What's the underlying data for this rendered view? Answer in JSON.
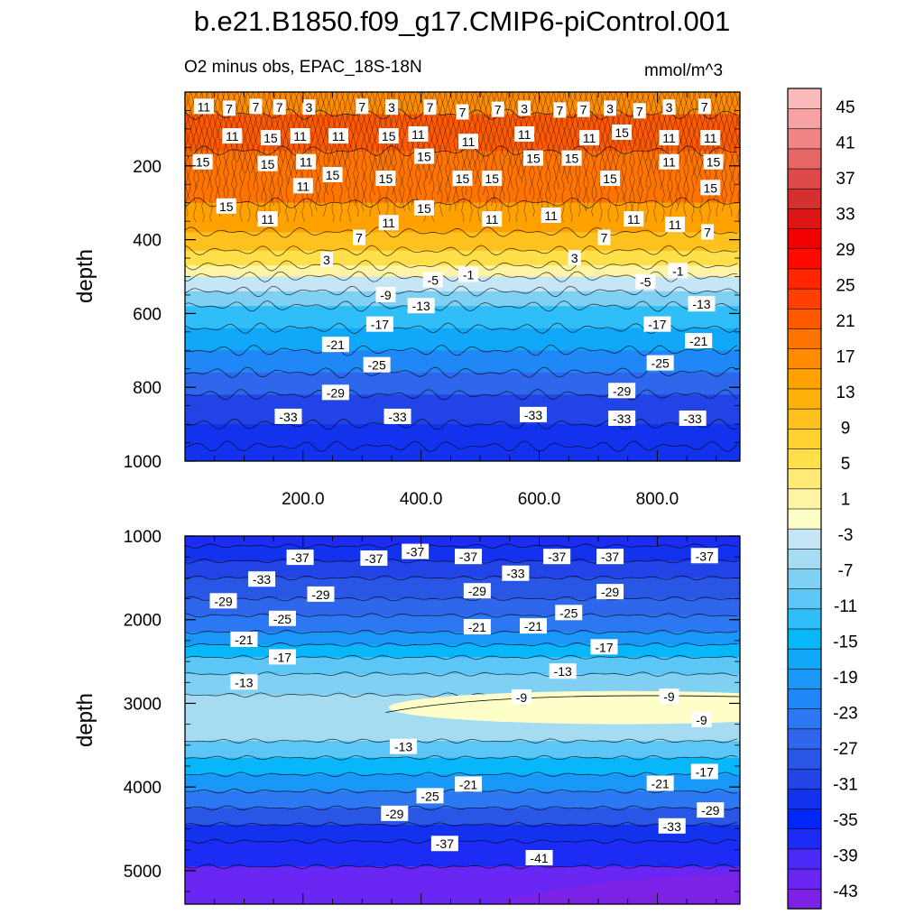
{
  "chart_data": {
    "type": "heatmap",
    "title": "b.e21.B1850.f09_g17.CMIP6-piControl.001",
    "subtitle": "O2 minus obs, EPAC_18S-18N",
    "units": "mmol/m^3",
    "colorbar": {
      "levels": [
        -45,
        -43,
        -41,
        -39,
        -37,
        -35,
        -33,
        -31,
        -29,
        -27,
        -25,
        -23,
        -21,
        -19,
        -17,
        -15,
        -13,
        -11,
        -9,
        -7,
        -5,
        -3,
        -1,
        1,
        3,
        5,
        7,
        9,
        11,
        13,
        15,
        17,
        19,
        21,
        23,
        25,
        27,
        29,
        31,
        33,
        35,
        37,
        39,
        41,
        43,
        45,
        47
      ],
      "labels": [
        "45",
        "41",
        "37",
        "33",
        "29",
        "25",
        "21",
        "17",
        "13",
        "9",
        "5",
        "1",
        "-3",
        "-7",
        "-11",
        "-15",
        "-19",
        "-23",
        "-27",
        "-31",
        "-35",
        "-39",
        "-43"
      ],
      "colors": [
        "#7c22e6",
        "#6a26f2",
        "#4c2af6",
        "#1c2cf4",
        "#0026f8",
        "#1232ee",
        "#2244e6",
        "#2a56e6",
        "#2e66ec",
        "#2c78f2",
        "#1f88f6",
        "#1a98fa",
        "#12a8fa",
        "#08b6fa",
        "#30bef8",
        "#5cc6f6",
        "#80d0f4",
        "#a6dcf2",
        "#c6e6f6",
        "#fefec8",
        "#fff4a4",
        "#ffea78",
        "#ffe04a",
        "#ffd232",
        "#ffc11e",
        "#ffb20c",
        "#ffa200",
        "#ff8c00",
        "#ff7400",
        "#ff5a00",
        "#ff4000",
        "#ff2600",
        "#ff0a00",
        "#f20000",
        "#e01616",
        "#d43030",
        "#de4a4a",
        "#e66666",
        "#ee8484",
        "#f6a2a2",
        "#fbbaba"
      ]
    },
    "upper_panel": {
      "ylabel": "depth",
      "ylim": [
        0,
        1000
      ],
      "xlim": [
        0,
        940
      ],
      "yticks": [
        "200",
        "400",
        "600",
        "800",
        "1000"
      ],
      "ytick_values": [
        200,
        400,
        600,
        800,
        1000
      ],
      "xticks": [
        "200.0",
        "400.0",
        "600.0",
        "800.0"
      ],
      "xtick_values": [
        200,
        400,
        600,
        800
      ],
      "bands": [
        {
          "depth": 60,
          "value": 9
        },
        {
          "depth": 160,
          "value": 13
        },
        {
          "depth": 300,
          "value": 11
        },
        {
          "depth": 380,
          "value": 7
        },
        {
          "depth": 430,
          "value": 3
        },
        {
          "depth": 470,
          "value": -1
        },
        {
          "depth": 500,
          "value": -5
        },
        {
          "depth": 540,
          "value": -9
        },
        {
          "depth": 580,
          "value": -13
        },
        {
          "depth": 640,
          "value": -17
        },
        {
          "depth": 700,
          "value": -21
        },
        {
          "depth": 760,
          "value": -25
        },
        {
          "depth": 820,
          "value": -29
        },
        {
          "depth": 900,
          "value": -33
        },
        {
          "depth": 960,
          "value": -35
        },
        {
          "depth": 1000,
          "value": -35
        }
      ],
      "contour_labels": [
        {
          "x": 32,
          "y": 40,
          "t": "11"
        },
        {
          "x": 75,
          "y": 45,
          "t": "7"
        },
        {
          "x": 120,
          "y": 40,
          "t": "7"
        },
        {
          "x": 160,
          "y": 42,
          "t": "7"
        },
        {
          "x": 210,
          "y": 42,
          "t": "3"
        },
        {
          "x": 300,
          "y": 40,
          "t": "7"
        },
        {
          "x": 350,
          "y": 42,
          "t": "3"
        },
        {
          "x": 415,
          "y": 42,
          "t": "7"
        },
        {
          "x": 470,
          "y": 55,
          "t": "7"
        },
        {
          "x": 530,
          "y": 48,
          "t": "7"
        },
        {
          "x": 575,
          "y": 45,
          "t": "3"
        },
        {
          "x": 635,
          "y": 50,
          "t": "7"
        },
        {
          "x": 675,
          "y": 48,
          "t": "7"
        },
        {
          "x": 720,
          "y": 45,
          "t": "3"
        },
        {
          "x": 770,
          "y": 52,
          "t": "7"
        },
        {
          "x": 820,
          "y": 42,
          "t": "3"
        },
        {
          "x": 880,
          "y": 40,
          "t": "7"
        },
        {
          "x": 80,
          "y": 120,
          "t": "11"
        },
        {
          "x": 145,
          "y": 125,
          "t": "15"
        },
        {
          "x": 195,
          "y": 120,
          "t": "11"
        },
        {
          "x": 260,
          "y": 120,
          "t": "11"
        },
        {
          "x": 345,
          "y": 120,
          "t": "15"
        },
        {
          "x": 395,
          "y": 115,
          "t": "11"
        },
        {
          "x": 480,
          "y": 135,
          "t": "11"
        },
        {
          "x": 575,
          "y": 115,
          "t": "11"
        },
        {
          "x": 685,
          "y": 125,
          "t": "11"
        },
        {
          "x": 740,
          "y": 110,
          "t": "15"
        },
        {
          "x": 820,
          "y": 125,
          "t": "11"
        },
        {
          "x": 890,
          "y": 125,
          "t": "11"
        },
        {
          "x": 30,
          "y": 190,
          "t": "15"
        },
        {
          "x": 140,
          "y": 195,
          "t": "15"
        },
        {
          "x": 205,
          "y": 190,
          "t": "11"
        },
        {
          "x": 405,
          "y": 175,
          "t": "15"
        },
        {
          "x": 590,
          "y": 180,
          "t": "15"
        },
        {
          "x": 655,
          "y": 180,
          "t": "15"
        },
        {
          "x": 820,
          "y": 190,
          "t": "11"
        },
        {
          "x": 895,
          "y": 190,
          "t": "15"
        },
        {
          "x": 200,
          "y": 255,
          "t": "11"
        },
        {
          "x": 250,
          "y": 225,
          "t": "15"
        },
        {
          "x": 340,
          "y": 235,
          "t": "15"
        },
        {
          "x": 470,
          "y": 235,
          "t": "15"
        },
        {
          "x": 520,
          "y": 235,
          "t": "15"
        },
        {
          "x": 720,
          "y": 235,
          "t": "15"
        },
        {
          "x": 890,
          "y": 260,
          "t": "15"
        },
        {
          "x": 70,
          "y": 310,
          "t": "15"
        },
        {
          "x": 140,
          "y": 345,
          "t": "11"
        },
        {
          "x": 345,
          "y": 355,
          "t": "11"
        },
        {
          "x": 405,
          "y": 315,
          "t": "15"
        },
        {
          "x": 520,
          "y": 345,
          "t": "11"
        },
        {
          "x": 620,
          "y": 335,
          "t": "11"
        },
        {
          "x": 760,
          "y": 345,
          "t": "11"
        },
        {
          "x": 830,
          "y": 360,
          "t": "11"
        },
        {
          "x": 295,
          "y": 395,
          "t": "7"
        },
        {
          "x": 710,
          "y": 395,
          "t": "7"
        },
        {
          "x": 885,
          "y": 380,
          "t": "7"
        },
        {
          "x": 240,
          "y": 455,
          "t": "3"
        },
        {
          "x": 660,
          "y": 450,
          "t": "3"
        },
        {
          "x": 480,
          "y": 495,
          "t": "-1"
        },
        {
          "x": 835,
          "y": 485,
          "t": "-1"
        },
        {
          "x": 420,
          "y": 510,
          "t": "-5"
        },
        {
          "x": 780,
          "y": 515,
          "t": "-5"
        },
        {
          "x": 340,
          "y": 550,
          "t": "-9"
        },
        {
          "x": 400,
          "y": 580,
          "t": "-13"
        },
        {
          "x": 875,
          "y": 575,
          "t": "-13"
        },
        {
          "x": 330,
          "y": 630,
          "t": "-17"
        },
        {
          "x": 800,
          "y": 630,
          "t": "-17"
        },
        {
          "x": 255,
          "y": 685,
          "t": "-21"
        },
        {
          "x": 870,
          "y": 675,
          "t": "-21"
        },
        {
          "x": 325,
          "y": 740,
          "t": "-25"
        },
        {
          "x": 805,
          "y": 735,
          "t": "-25"
        },
        {
          "x": 255,
          "y": 815,
          "t": "-29"
        },
        {
          "x": 740,
          "y": 810,
          "t": "-29"
        },
        {
          "x": 175,
          "y": 880,
          "t": "-33"
        },
        {
          "x": 360,
          "y": 880,
          "t": "-33"
        },
        {
          "x": 590,
          "y": 875,
          "t": "-33"
        },
        {
          "x": 740,
          "y": 885,
          "t": "-33"
        },
        {
          "x": 860,
          "y": 885,
          "t": "-33"
        }
      ]
    },
    "lower_panel": {
      "ylabel": "depth",
      "ylim": [
        1000,
        5400
      ],
      "xlim": [
        0,
        940
      ],
      "yticks": [
        "1000",
        "2000",
        "3000",
        "4000",
        "5000"
      ],
      "ytick_values": [
        1000,
        2000,
        3000,
        4000,
        5000
      ],
      "bands": [
        {
          "depth": 1120,
          "value": -39
        },
        {
          "depth": 1300,
          "value": -35
        },
        {
          "depth": 1500,
          "value": -33
        },
        {
          "depth": 1750,
          "value": -31
        },
        {
          "depth": 1950,
          "value": -29
        },
        {
          "depth": 2150,
          "value": -27
        },
        {
          "depth": 2300,
          "value": -23
        },
        {
          "depth": 2450,
          "value": -19
        },
        {
          "depth": 2650,
          "value": -15
        },
        {
          "depth": 2900,
          "value": -13
        },
        {
          "depth": 3450,
          "value": -11
        },
        {
          "depth": 3650,
          "value": -15
        },
        {
          "depth": 3850,
          "value": -19
        },
        {
          "depth": 4050,
          "value": -23
        },
        {
          "depth": 4250,
          "value": -27
        },
        {
          "depth": 4450,
          "value": -31
        },
        {
          "depth": 4650,
          "value": -35
        },
        {
          "depth": 4950,
          "value": -39
        },
        {
          "depth": 5400,
          "value": -43
        }
      ],
      "lens_value": -7,
      "contour_labels": [
        {
          "x": 195,
          "y": 1260,
          "t": "-37"
        },
        {
          "x": 320,
          "y": 1270,
          "t": "-37"
        },
        {
          "x": 390,
          "y": 1190,
          "t": "-37"
        },
        {
          "x": 480,
          "y": 1250,
          "t": "-37"
        },
        {
          "x": 630,
          "y": 1250,
          "t": "-37"
        },
        {
          "x": 720,
          "y": 1250,
          "t": "-37"
        },
        {
          "x": 880,
          "y": 1240,
          "t": "-37"
        },
        {
          "x": 130,
          "y": 1520,
          "t": "-33"
        },
        {
          "x": 560,
          "y": 1450,
          "t": "-33"
        },
        {
          "x": 65,
          "y": 1780,
          "t": "-29"
        },
        {
          "x": 230,
          "y": 1700,
          "t": "-29"
        },
        {
          "x": 495,
          "y": 1660,
          "t": "-29"
        },
        {
          "x": 720,
          "y": 1670,
          "t": "-29"
        },
        {
          "x": 165,
          "y": 1990,
          "t": "-25"
        },
        {
          "x": 650,
          "y": 1920,
          "t": "-25"
        },
        {
          "x": 495,
          "y": 2090,
          "t": "-21"
        },
        {
          "x": 590,
          "y": 2080,
          "t": "-21"
        },
        {
          "x": 100,
          "y": 2240,
          "t": "-21"
        },
        {
          "x": 165,
          "y": 2450,
          "t": "-17"
        },
        {
          "x": 710,
          "y": 2330,
          "t": "-17"
        },
        {
          "x": 100,
          "y": 2750,
          "t": "-13"
        },
        {
          "x": 640,
          "y": 2620,
          "t": "-13"
        },
        {
          "x": 570,
          "y": 2930,
          "t": "-9"
        },
        {
          "x": 820,
          "y": 2920,
          "t": "-9"
        },
        {
          "x": 875,
          "y": 3200,
          "t": "-9"
        },
        {
          "x": 370,
          "y": 3520,
          "t": "-13"
        },
        {
          "x": 880,
          "y": 3820,
          "t": "-17"
        },
        {
          "x": 480,
          "y": 3970,
          "t": "-21"
        },
        {
          "x": 805,
          "y": 3960,
          "t": "-21"
        },
        {
          "x": 415,
          "y": 4110,
          "t": "-25"
        },
        {
          "x": 355,
          "y": 4320,
          "t": "-29"
        },
        {
          "x": 890,
          "y": 4280,
          "t": "-29"
        },
        {
          "x": 825,
          "y": 4470,
          "t": "-33"
        },
        {
          "x": 440,
          "y": 4680,
          "t": "-37"
        },
        {
          "x": 600,
          "y": 4850,
          "t": "-41"
        }
      ]
    }
  }
}
